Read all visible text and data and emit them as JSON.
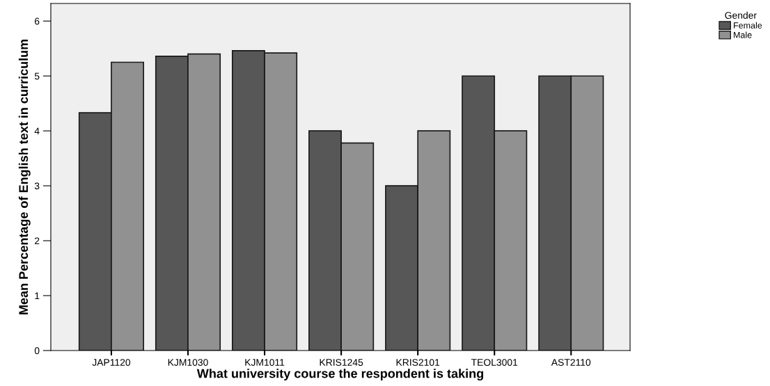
{
  "chart_data": {
    "type": "bar",
    "xlabel": "What university course the respondent is taking",
    "ylabel": "Mean Percentage of English text in curriculum",
    "legend_title": "Gender",
    "categories": [
      "JAP1120",
      "KJM1030",
      "KJM1011",
      "KRIS1245",
      "KRIS2101",
      "TEOL3001",
      "AST2110"
    ],
    "series": [
      {
        "name": "Female",
        "color": "#575757",
        "values": [
          4.33,
          5.36,
          5.46,
          4.0,
          3.0,
          5.0,
          5.0
        ]
      },
      {
        "name": "Male",
        "color": "#919191",
        "values": [
          5.25,
          5.4,
          5.42,
          3.78,
          4.0,
          4.0,
          5.0
        ]
      }
    ],
    "ylim": [
      0,
      6.32
    ],
    "yticks": [
      0,
      1,
      2,
      3,
      4,
      5,
      6
    ],
    "grid": false,
    "legend": "top right"
  }
}
